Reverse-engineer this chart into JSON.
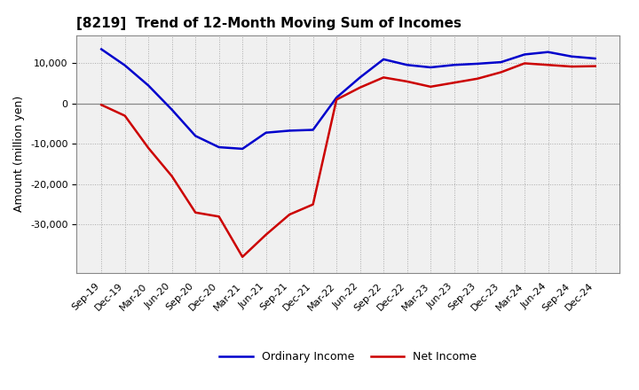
{
  "title": "[8219]  Trend of 12-Month Moving Sum of Incomes",
  "ylabel": "Amount (million yen)",
  "background_color": "#ffffff",
  "plot_bg_color": "#f0f0f0",
  "grid_color": "#aaaaaa",
  "zero_line_color": "#888888",
  "x_labels": [
    "Sep-19",
    "Dec-19",
    "Mar-20",
    "Jun-20",
    "Sep-20",
    "Dec-20",
    "Mar-21",
    "Jun-21",
    "Sep-21",
    "Dec-21",
    "Mar-22",
    "Jun-22",
    "Sep-22",
    "Dec-22",
    "Mar-23",
    "Jun-23",
    "Sep-23",
    "Dec-23",
    "Mar-24",
    "Jun-24",
    "Sep-24",
    "Dec-24"
  ],
  "ordinary_income": [
    13500,
    9500,
    4500,
    -1500,
    -8000,
    -10800,
    -11200,
    -7200,
    -6700,
    -6500,
    1500,
    6500,
    11000,
    9600,
    9000,
    9600,
    9900,
    10300,
    12200,
    12800,
    11700,
    11200
  ],
  "net_income": [
    -300,
    -3000,
    -11000,
    -18000,
    -27000,
    -28000,
    -38000,
    -32500,
    -27500,
    -25000,
    1000,
    4000,
    6500,
    5500,
    4200,
    5200,
    6200,
    7800,
    10000,
    9600,
    9200,
    9300
  ],
  "ordinary_color": "#0000cc",
  "net_color": "#cc0000",
  "ylim": [
    -42000,
    17000
  ],
  "yticks": [
    -30000,
    -20000,
    -10000,
    0,
    10000
  ],
  "line_width": 1.8
}
